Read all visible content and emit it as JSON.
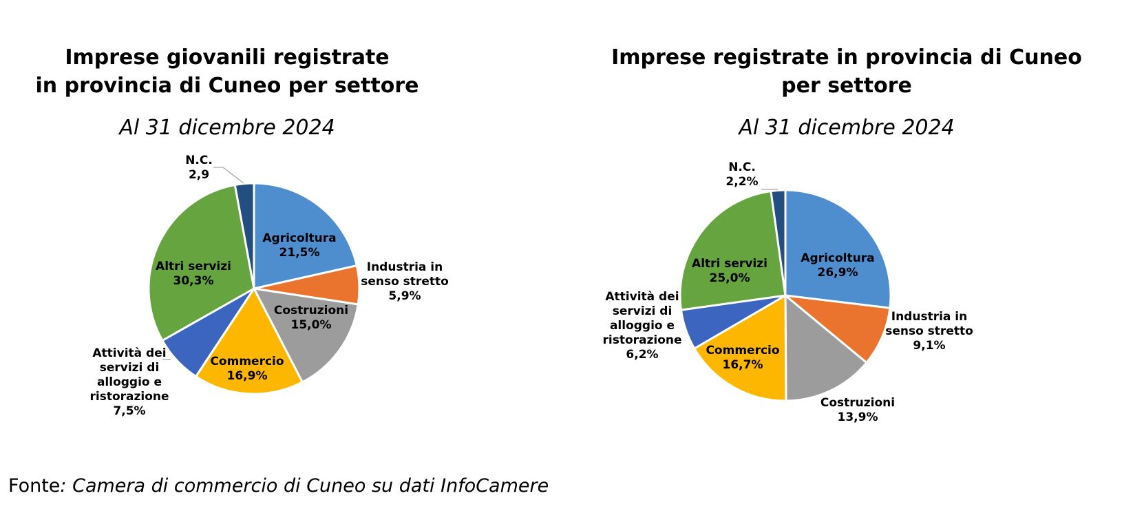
{
  "chart_data": [
    {
      "type": "pie",
      "title": "Imprese giovanili registrate in provincia di Cuneo per settore",
      "title_lines": [
        "Imprese giovanili registrate",
        "in provincia di Cuneo per settore"
      ],
      "subtitle": "Al 31 dicembre 2024",
      "categories": [
        "Agricoltura",
        "Industria in senso stretto",
        "Costruzioni",
        "Commercio",
        "Attività dei servizi di alloggio e ristorazione",
        "Altri servizi",
        "N.C."
      ],
      "values": [
        21.5,
        5.9,
        15.0,
        16.9,
        7.5,
        30.3,
        2.9
      ],
      "colors": [
        "#4e8ecf",
        "#ea732d",
        "#9c9c9c",
        "#fdb700",
        "#3b65be",
        "#66a440",
        "#224f7f"
      ],
      "data_labels": [
        [
          "Agricoltura",
          "21,5%"
        ],
        [
          "Industria in",
          "senso stretto",
          "5,9%"
        ],
        [
          "Costruzioni",
          "15,0%"
        ],
        [
          "Commercio",
          "16,9%"
        ],
        [
          "Attività dei",
          "servizi di",
          "alloggio e",
          "ristorazione",
          "7,5%"
        ],
        [
          "Altri servizi",
          "30,3%"
        ],
        [
          "N.C.",
          "2,9"
        ]
      ]
    },
    {
      "type": "pie",
      "title": "Imprese registrate in provincia di Cuneo per settore",
      "title_lines": [
        "Imprese registrate in provincia di Cuneo",
        "per settore"
      ],
      "subtitle": "Al 31 dicembre 2024",
      "categories": [
        "Agricoltura",
        "Industria in senso stretto",
        "Costruzioni",
        "Commercio",
        "Attività dei servizi di alloggio e ristorazione",
        "Altri servizi",
        "N.C."
      ],
      "values": [
        26.9,
        9.1,
        13.9,
        16.7,
        6.2,
        25.0,
        2.2
      ],
      "colors": [
        "#4e8ecf",
        "#ea732d",
        "#9c9c9c",
        "#fdb700",
        "#3b65be",
        "#66a440",
        "#224f7f"
      ],
      "data_labels": [
        [
          "Agricoltura",
          "26,9%"
        ],
        [
          "Industria in",
          "senso stretto",
          "9,1%"
        ],
        [
          "Costruzioni",
          "13,9%"
        ],
        [
          "Commercio",
          "16,7%"
        ],
        [
          "Attività dei",
          "servizi di",
          "alloggio e",
          "ristorazione",
          "6,2%"
        ],
        [
          "Altri servizi",
          "25,0%"
        ],
        [
          "N.C.",
          "2,2%"
        ]
      ]
    }
  ],
  "source": {
    "prefix": "Fonte",
    "text": ": Camera di commercio di Cuneo su dati InfoCamere"
  }
}
